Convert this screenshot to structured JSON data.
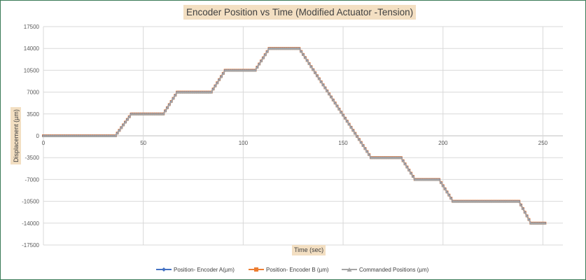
{
  "chart_data": {
    "type": "line",
    "title": "Encoder Position vs Time (Modified Actuator -Tension)",
    "xlabel": "Time (sec)",
    "ylabel": "Displacement  (µm)",
    "xlim": [
      0,
      260
    ],
    "ylim": [
      -17500,
      17500
    ],
    "x_ticks": [
      0,
      50,
      100,
      150,
      200,
      250
    ],
    "y_ticks": [
      17500,
      14000,
      10500,
      7000,
      3500,
      0,
      -3500,
      -7000,
      -10500,
      -14000,
      -17500
    ],
    "grid": true,
    "legend_position": "bottom",
    "series": [
      {
        "name": "Position- Encoder A(µm)",
        "color": "#4472c4",
        "marker": "diamond",
        "x": [
          0,
          36,
          44,
          60,
          67,
          84,
          91,
          106,
          113,
          128,
          164,
          179,
          186,
          198,
          205,
          238,
          244,
          251
        ],
        "y": [
          0,
          0,
          3500,
          3500,
          7000,
          7000,
          10500,
          10500,
          14000,
          14000,
          -3500,
          -3500,
          -7000,
          -7000,
          -10500,
          -10500,
          -14000,
          -14000
        ]
      },
      {
        "name": "Position- Encoder B (µm)",
        "color": "#ed7d31",
        "marker": "square",
        "x": [
          0,
          36,
          44,
          60,
          67,
          84,
          91,
          106,
          113,
          128,
          164,
          179,
          186,
          198,
          205,
          238,
          244,
          251
        ],
        "y": [
          0,
          0,
          3500,
          3500,
          7000,
          7000,
          10500,
          10500,
          14000,
          14000,
          -3500,
          -3500,
          -7000,
          -7000,
          -10500,
          -10500,
          -14000,
          -14000
        ]
      },
      {
        "name": "Commanded Positions (µm)",
        "color": "#a5a5a5",
        "marker": "triangle",
        "x": [
          0,
          36,
          44,
          60,
          67,
          84,
          91,
          106,
          113,
          128,
          164,
          179,
          186,
          198,
          205,
          238,
          244,
          251
        ],
        "y": [
          0,
          0,
          3500,
          3500,
          7000,
          7000,
          10500,
          10500,
          14000,
          14000,
          -3500,
          -3500,
          -7000,
          -7000,
          -10500,
          -10500,
          -14000,
          -14000
        ]
      }
    ]
  }
}
